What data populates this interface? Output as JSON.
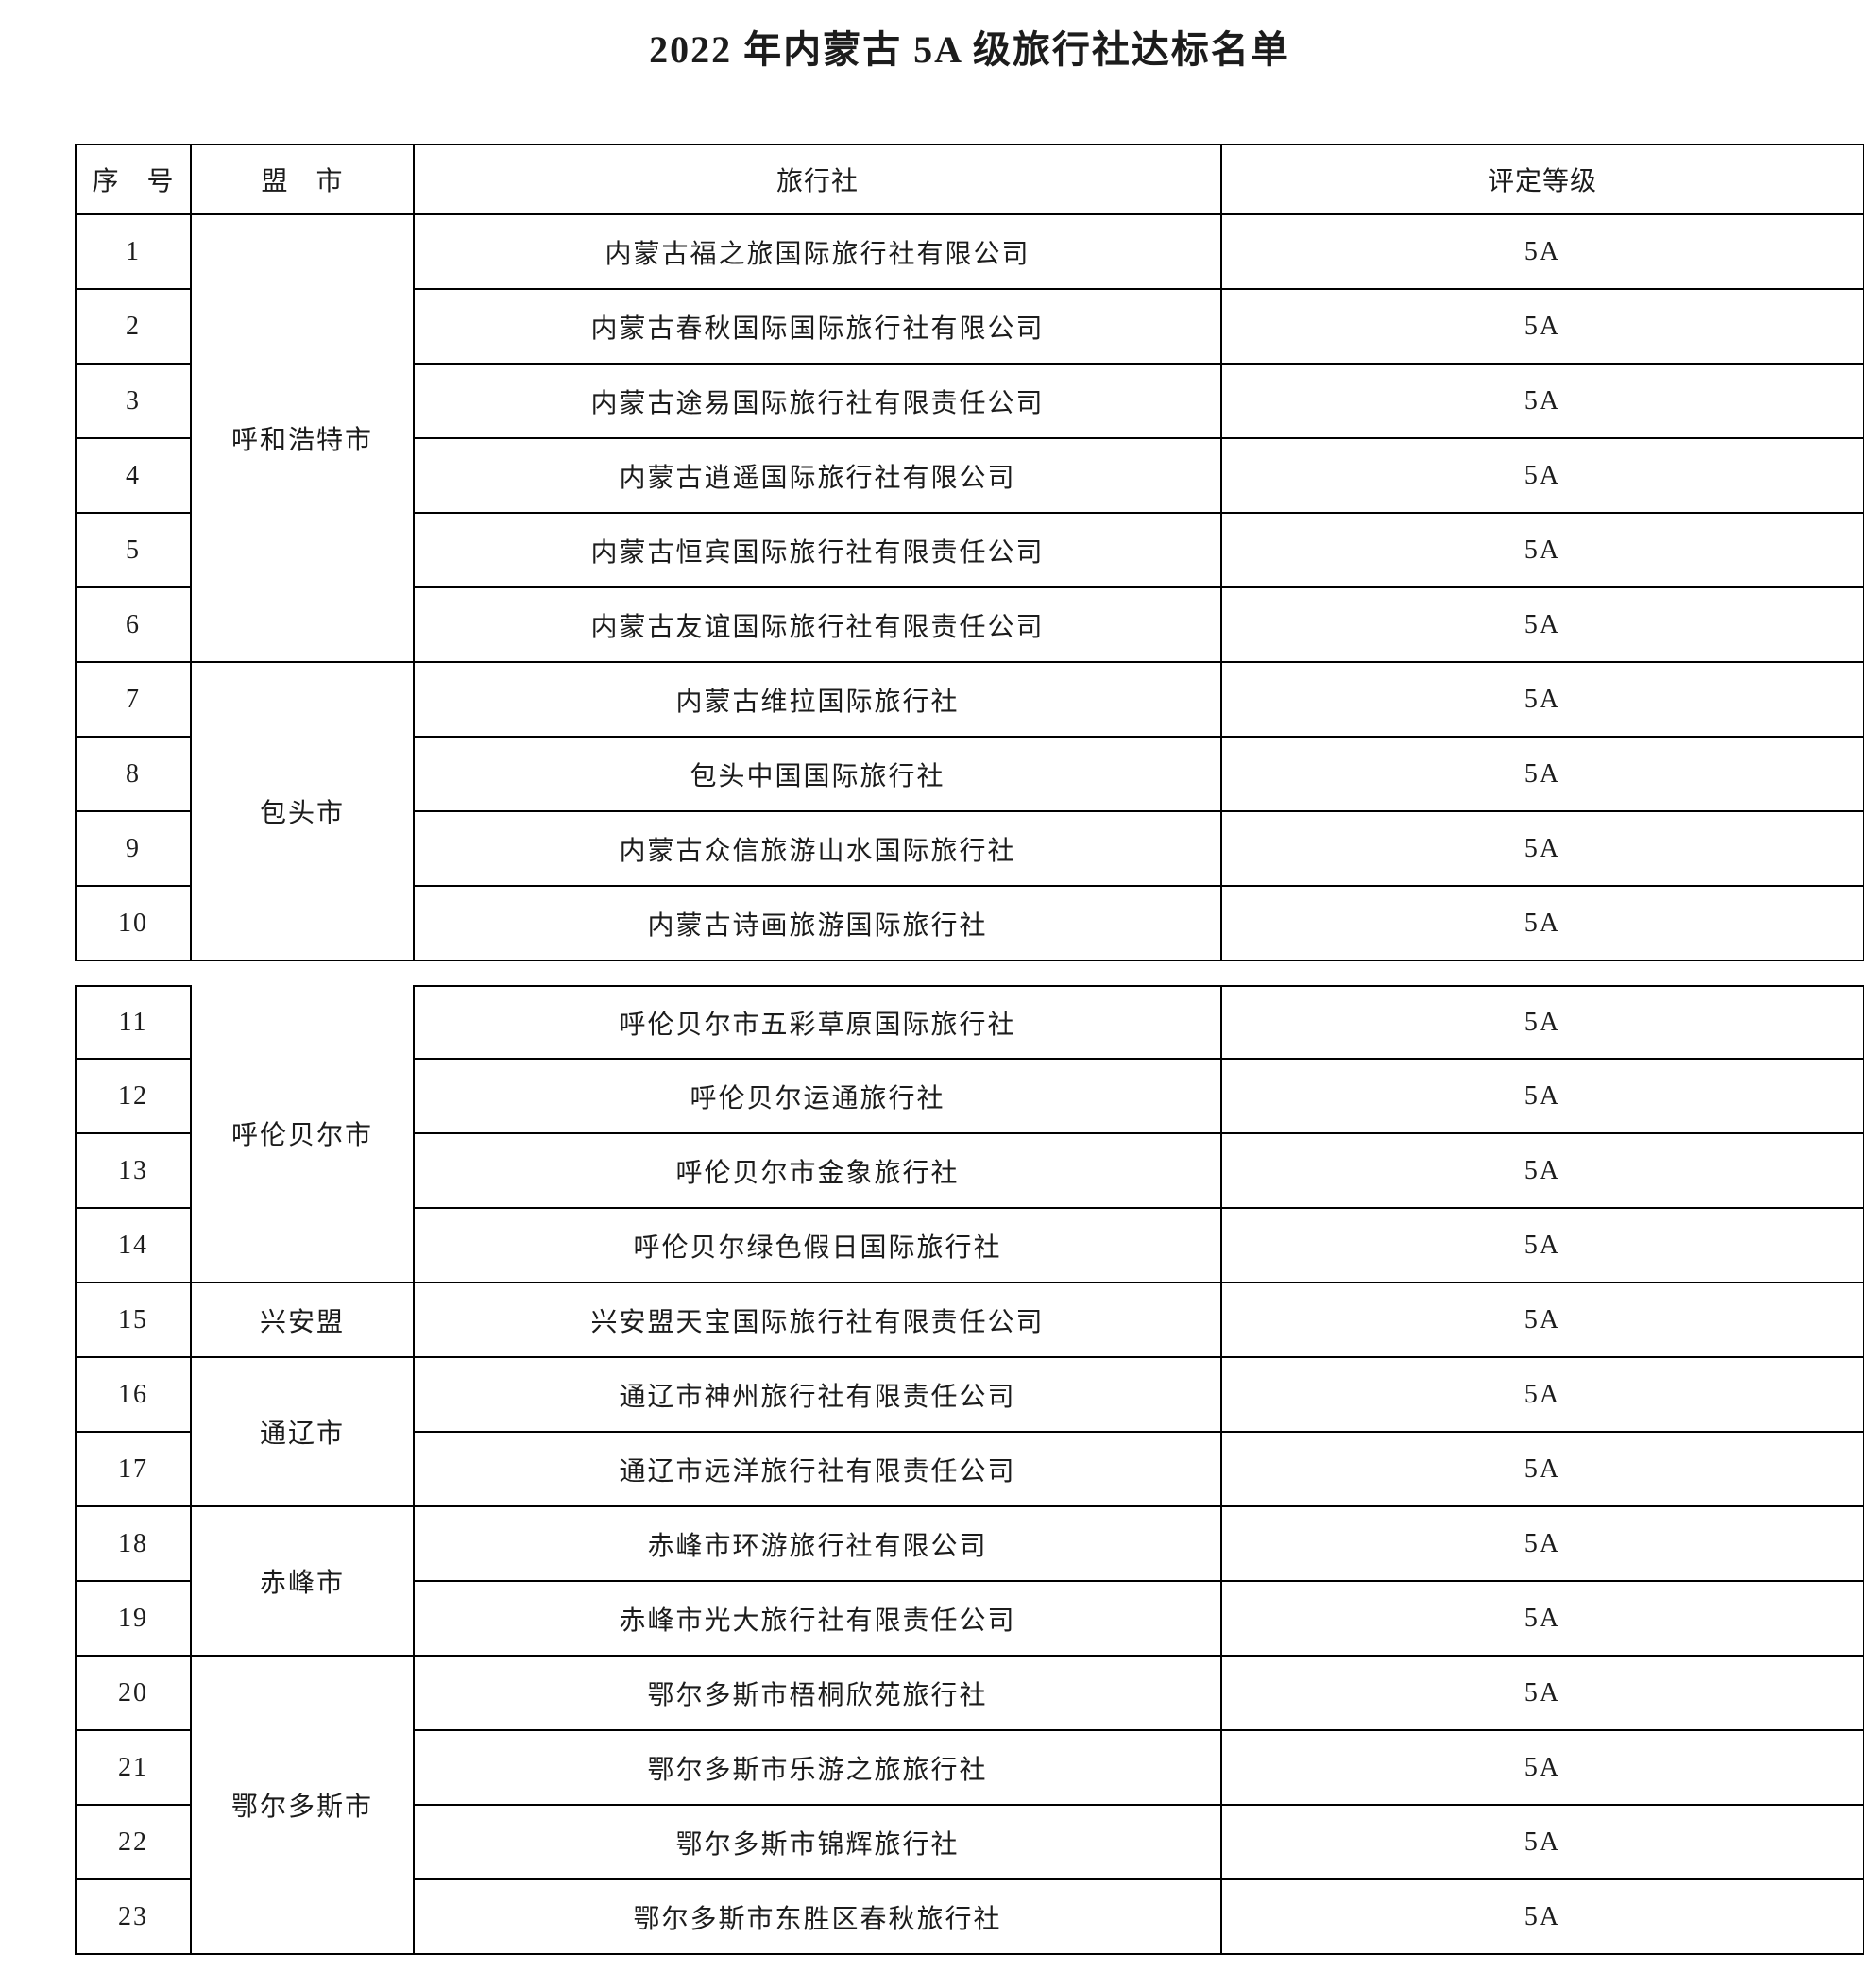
{
  "title": "2022 年内蒙古 5A 级旅行社达标名单",
  "colors": {
    "background": "#ffffff",
    "text": "#1c1c1c",
    "border": "#000000"
  },
  "tables": [
    {
      "header": {
        "index": "序　号",
        "region": "盟　市",
        "agency": "旅行社",
        "grade": "评定等级"
      },
      "groups": [
        {
          "region": "呼和浩特市",
          "rows": [
            {
              "no": "1",
              "agency": "内蒙古福之旅国际旅行社有限公司",
              "grade": "5A"
            },
            {
              "no": "2",
              "agency": "内蒙古春秋国际国际旅行社有限公司",
              "grade": "5A"
            },
            {
              "no": "3",
              "agency": "内蒙古途易国际旅行社有限责任公司",
              "grade": "5A"
            },
            {
              "no": "4",
              "agency": "内蒙古逍遥国际旅行社有限公司",
              "grade": "5A"
            },
            {
              "no": "5",
              "agency": "内蒙古恒宾国际旅行社有限责任公司",
              "grade": "5A"
            },
            {
              "no": "6",
              "agency": "内蒙古友谊国际旅行社有限责任公司",
              "grade": "5A"
            }
          ]
        },
        {
          "region": "包头市",
          "rows": [
            {
              "no": "7",
              "agency": "内蒙古维拉国际旅行社",
              "grade": "5A"
            },
            {
              "no": "8",
              "agency": "包头中国国际旅行社",
              "grade": "5A"
            },
            {
              "no": "9",
              "agency": "内蒙古众信旅游山水国际旅行社",
              "grade": "5A"
            },
            {
              "no": "10",
              "agency": "内蒙古诗画旅游国际旅行社",
              "grade": "5A"
            }
          ]
        }
      ]
    },
    {
      "header": null,
      "groups": [
        {
          "region": "呼伦贝尔市",
          "rows": [
            {
              "no": "11",
              "agency": "呼伦贝尔市五彩草原国际旅行社",
              "grade": "5A"
            },
            {
              "no": "12",
              "agency": "呼伦贝尔运通旅行社",
              "grade": "5A"
            },
            {
              "no": "13",
              "agency": "呼伦贝尔市金象旅行社",
              "grade": "5A"
            },
            {
              "no": "14",
              "agency": "呼伦贝尔绿色假日国际旅行社",
              "grade": "5A"
            }
          ]
        },
        {
          "region": "兴安盟",
          "rows": [
            {
              "no": "15",
              "agency": "兴安盟天宝国际旅行社有限责任公司",
              "grade": "5A"
            }
          ]
        },
        {
          "region": "通辽市",
          "rows": [
            {
              "no": "16",
              "agency": "通辽市神州旅行社有限责任公司",
              "grade": "5A"
            },
            {
              "no": "17",
              "agency": "通辽市远洋旅行社有限责任公司",
              "grade": "5A"
            }
          ]
        },
        {
          "region": "赤峰市",
          "rows": [
            {
              "no": "18",
              "agency": "赤峰市环游旅行社有限公司",
              "grade": "5A"
            },
            {
              "no": "19",
              "agency": "赤峰市光大旅行社有限责任公司",
              "grade": "5A"
            }
          ]
        },
        {
          "region": "鄂尔多斯市",
          "rows": [
            {
              "no": "20",
              "agency": "鄂尔多斯市梧桐欣苑旅行社",
              "grade": "5A"
            },
            {
              "no": "21",
              "agency": "鄂尔多斯市乐游之旅旅行社",
              "grade": "5A"
            },
            {
              "no": "22",
              "agency": "鄂尔多斯市锦辉旅行社",
              "grade": "5A"
            },
            {
              "no": "23",
              "agency": "鄂尔多斯市东胜区春秋旅行社",
              "grade": "5A"
            }
          ]
        }
      ]
    }
  ]
}
